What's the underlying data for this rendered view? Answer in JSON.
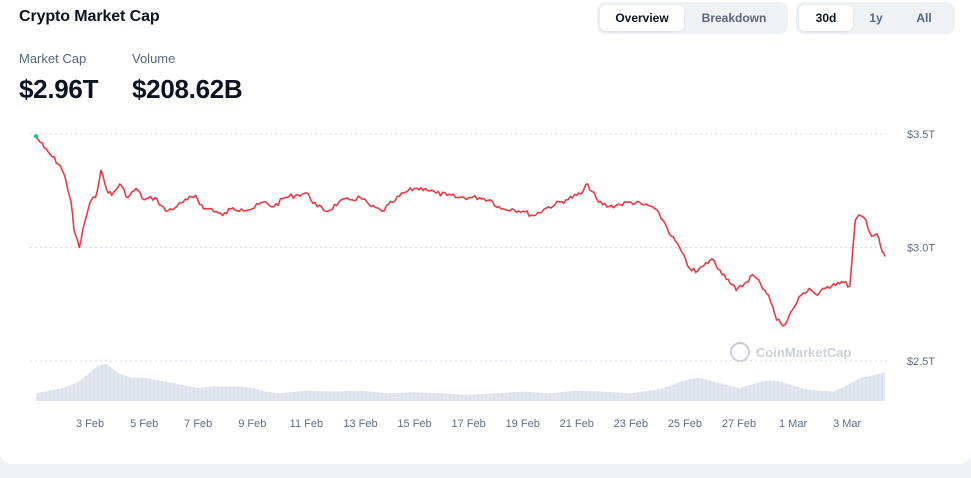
{
  "header": {
    "title": "Crypto Market Cap",
    "view_tabs": [
      {
        "label": "Overview",
        "active": true
      },
      {
        "label": "Breakdown",
        "active": false
      }
    ],
    "range_tabs": [
      {
        "label": "30d",
        "active": true
      },
      {
        "label": "1y",
        "active": false
      },
      {
        "label": "All",
        "active": false
      }
    ]
  },
  "stats": {
    "market_cap_label": "Market Cap",
    "market_cap_value": "$2.96T",
    "volume_label": "Volume",
    "volume_value": "$208.62B"
  },
  "watermark": "CoinMarketCap",
  "colors": {
    "line": "#ea3943",
    "volume": "#cfd6e4",
    "grid": "#cfd6e4",
    "accent_start": "#16c784"
  },
  "chart_data": {
    "type": "line",
    "y_axis": {
      "min": 2.5,
      "max": 3.5,
      "ticks": [
        "$2.5T",
        "$3.0T",
        "$3.5T"
      ],
      "tick_values": [
        2.5,
        3.0,
        3.5
      ],
      "position": "right"
    },
    "x_axis": {
      "range": [
        1.0,
        32.4
      ],
      "ticks": [
        "3 Feb",
        "5 Feb",
        "7 Feb",
        "9 Feb",
        "11 Feb",
        "13 Feb",
        "15 Feb",
        "17 Feb",
        "19 Feb",
        "21 Feb",
        "23 Feb",
        "25 Feb",
        "27 Feb",
        "1 Mar",
        "3 Mar"
      ],
      "tick_days": [
        3,
        5,
        7,
        9,
        11,
        13,
        15,
        17,
        19,
        21,
        23,
        25,
        27,
        29,
        31
      ]
    },
    "grid": "horizontal-dashed",
    "series": [
      {
        "kind": "market_cap_trillions",
        "x": [
          1.0,
          1.3,
          1.6,
          1.9,
          2.1,
          2.3,
          2.4,
          2.6,
          2.8,
          3.0,
          3.2,
          3.4,
          3.6,
          3.8,
          4.1,
          4.4,
          4.7,
          5.0,
          5.4,
          5.8,
          6.2,
          6.6,
          6.9,
          7.2,
          7.5,
          7.9,
          8.2,
          8.6,
          9.0,
          9.4,
          9.8,
          10.2,
          10.6,
          11.0,
          11.4,
          11.8,
          12.2,
          12.6,
          13.0,
          13.4,
          13.8,
          14.2,
          14.6,
          15.0,
          15.4,
          15.8,
          16.2,
          16.6,
          17.0,
          17.4,
          17.8,
          18.2,
          18.6,
          19.0,
          19.4,
          19.8,
          20.2,
          20.6,
          21.0,
          21.2,
          21.4,
          21.8,
          22.2,
          22.6,
          23.0,
          23.4,
          23.8,
          24.2,
          24.5,
          24.8,
          25.1,
          25.4,
          25.7,
          26.0,
          26.3,
          26.6,
          26.9,
          27.2,
          27.5,
          27.8,
          28.1,
          28.4,
          28.7,
          29.0,
          29.3,
          29.6,
          29.9,
          30.2,
          30.5,
          30.8,
          31.1,
          31.3,
          31.5,
          31.7,
          31.9,
          32.1,
          32.3,
          32.4
        ],
        "values": [
          3.49,
          3.44,
          3.4,
          3.36,
          3.3,
          3.2,
          3.08,
          3.0,
          3.11,
          3.2,
          3.22,
          3.34,
          3.26,
          3.23,
          3.28,
          3.22,
          3.26,
          3.21,
          3.22,
          3.16,
          3.18,
          3.21,
          3.23,
          3.17,
          3.17,
          3.14,
          3.17,
          3.17,
          3.17,
          3.2,
          3.18,
          3.22,
          3.23,
          3.24,
          3.18,
          3.16,
          3.2,
          3.21,
          3.22,
          3.18,
          3.16,
          3.2,
          3.24,
          3.26,
          3.26,
          3.24,
          3.23,
          3.22,
          3.22,
          3.22,
          3.21,
          3.17,
          3.17,
          3.16,
          3.14,
          3.17,
          3.19,
          3.21,
          3.23,
          3.24,
          3.28,
          3.2,
          3.18,
          3.19,
          3.2,
          3.19,
          3.18,
          3.12,
          3.05,
          3.0,
          2.92,
          2.89,
          2.92,
          2.95,
          2.9,
          2.86,
          2.81,
          2.84,
          2.88,
          2.84,
          2.79,
          2.68,
          2.66,
          2.73,
          2.79,
          2.82,
          2.79,
          2.82,
          2.84,
          2.85,
          2.83,
          3.12,
          3.14,
          3.12,
          3.05,
          3.06,
          2.98,
          2.96
        ]
      },
      {
        "kind": "volume_relative",
        "x": [
          1.0,
          1.5,
          2.0,
          2.5,
          3.0,
          3.3,
          3.6,
          4.0,
          4.5,
          5.0,
          5.5,
          6.0,
          6.5,
          7.0,
          7.5,
          8.0,
          8.5,
          9.0,
          9.5,
          10.0,
          11.0,
          12.0,
          13.0,
          14.0,
          15.0,
          16.0,
          17.0,
          18.0,
          19.0,
          20.0,
          21.0,
          22.0,
          23.0,
          24.0,
          24.5,
          25.0,
          25.5,
          26.0,
          27.0,
          27.5,
          28.0,
          28.5,
          29.0,
          29.5,
          30.0,
          30.5,
          31.0,
          31.5,
          32.0,
          32.4
        ],
        "values": [
          0.15,
          0.2,
          0.25,
          0.35,
          0.55,
          0.68,
          0.72,
          0.55,
          0.45,
          0.45,
          0.4,
          0.35,
          0.3,
          0.25,
          0.28,
          0.28,
          0.28,
          0.25,
          0.18,
          0.15,
          0.2,
          0.18,
          0.2,
          0.15,
          0.17,
          0.15,
          0.12,
          0.15,
          0.18,
          0.15,
          0.2,
          0.18,
          0.15,
          0.22,
          0.3,
          0.4,
          0.45,
          0.38,
          0.25,
          0.32,
          0.4,
          0.38,
          0.3,
          0.22,
          0.2,
          0.18,
          0.3,
          0.45,
          0.5,
          0.55
        ]
      }
    ]
  }
}
